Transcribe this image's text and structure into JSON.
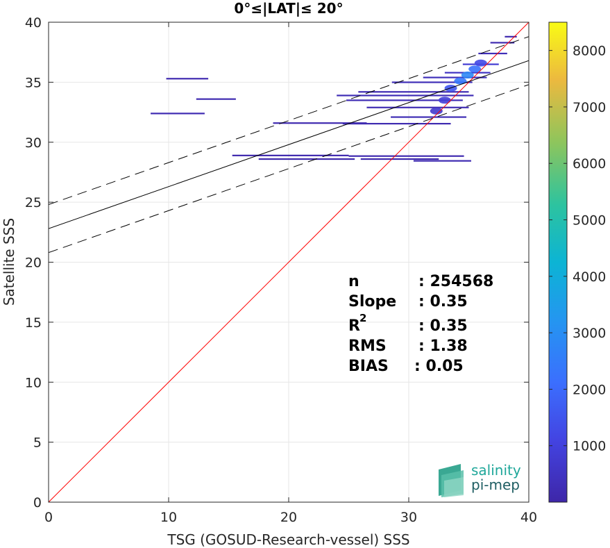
{
  "chart_data": {
    "type": "heatmap",
    "title": "0°≤|LAT|≤ 20°",
    "xlabel": "TSG (GOSUD-Research-vessel) SSS",
    "ylabel": "Satellite SSS",
    "xlim": [
      0,
      40
    ],
    "ylim": [
      0,
      40
    ],
    "xticks": [
      "0",
      "10",
      "20",
      "30",
      "40"
    ],
    "yticks": [
      "0",
      "5",
      "10",
      "15",
      "20",
      "25",
      "30",
      "35",
      "40"
    ],
    "grid": true,
    "colorbar": {
      "range": [
        0,
        8500
      ],
      "ticks": [
        "1000",
        "2000",
        "3000",
        "4000",
        "5000",
        "6000",
        "7000",
        "8000"
      ],
      "colormap": "parula"
    },
    "reference_line": {
      "slope": 1,
      "intercept": 0,
      "color": "#ff0000"
    },
    "fit_line": {
      "slope": 0.35,
      "intercept": 22.8,
      "color": "#000000"
    },
    "fit_bounds": [
      {
        "slope": 0.35,
        "intercept": 24.8
      },
      {
        "slope": 0.35,
        "intercept": 20.8
      }
    ],
    "density_segments": [
      {
        "x0": 9.8,
        "x1": 13.3,
        "y": 35.3,
        "count": 150
      },
      {
        "x0": 12.3,
        "x1": 15.6,
        "y": 33.6,
        "count": 150
      },
      {
        "x0": 8.5,
        "x1": 13.0,
        "y": 32.4,
        "count": 200
      },
      {
        "x0": 15.3,
        "x1": 25.0,
        "y": 28.9,
        "count": 120
      },
      {
        "x0": 17.5,
        "x1": 25.5,
        "y": 28.6,
        "count": 80
      },
      {
        "x0": 25.0,
        "x1": 34.6,
        "y": 28.85,
        "count": 150
      },
      {
        "x0": 26.0,
        "x1": 32.5,
        "y": 28.6,
        "count": 80
      },
      {
        "x0": 30.4,
        "x1": 35.2,
        "y": 28.45,
        "count": 200
      },
      {
        "x0": 18.7,
        "x1": 26.5,
        "y": 31.6,
        "count": 150
      },
      {
        "x0": 24.5,
        "x1": 33.5,
        "y": 31.55,
        "count": 180
      },
      {
        "x0": 28.5,
        "x1": 34.8,
        "y": 32.1,
        "count": 250
      },
      {
        "x0": 26.5,
        "x1": 35.0,
        "y": 32.9,
        "count": 200
      },
      {
        "x0": 24.8,
        "x1": 34.5,
        "y": 33.5,
        "count": 220
      },
      {
        "x0": 24.0,
        "x1": 35.4,
        "y": 33.9,
        "count": 250
      },
      {
        "x0": 25.8,
        "x1": 35.0,
        "y": 34.2,
        "count": 200
      },
      {
        "x0": 28.6,
        "x1": 35.3,
        "y": 35.0,
        "count": 300
      },
      {
        "x0": 31.2,
        "x1": 36.5,
        "y": 35.4,
        "count": 350
      },
      {
        "x0": 33.0,
        "x1": 36.8,
        "y": 35.8,
        "count": 500
      },
      {
        "x0": 34.5,
        "x1": 37.5,
        "y": 36.5,
        "count": 800
      },
      {
        "x0": 35.8,
        "x1": 38.2,
        "y": 37.4,
        "count": 300
      },
      {
        "x0": 36.8,
        "x1": 38.8,
        "y": 38.3,
        "count": 150
      },
      {
        "x0": 38.0,
        "x1": 39.0,
        "y": 38.8,
        "count": 120
      }
    ],
    "density_blobs": [
      {
        "x": 33.5,
        "y": 34.5,
        "count": 1500
      },
      {
        "x": 34.3,
        "y": 35.1,
        "count": 2400
      },
      {
        "x": 34.9,
        "y": 35.6,
        "count": 2800
      },
      {
        "x": 35.5,
        "y": 36.1,
        "count": 2200
      },
      {
        "x": 36.0,
        "y": 36.6,
        "count": 1200
      },
      {
        "x": 33.0,
        "y": 33.5,
        "count": 900
      },
      {
        "x": 32.3,
        "y": 32.6,
        "count": 700
      }
    ]
  },
  "stats": {
    "n_label": "n",
    "n_value": ": 254568",
    "slope_label": "Slope",
    "slope_value": ": 0.35",
    "r2_label": "R",
    "r2_sup": "2",
    "r2_value": ": 0.35",
    "rms_label": "RMS",
    "rms_value": ": 1.38",
    "bias_label": "BIAS",
    "bias_value": ": 0.05"
  },
  "logo": {
    "line1": "salinity",
    "line2": "pi-mep"
  }
}
